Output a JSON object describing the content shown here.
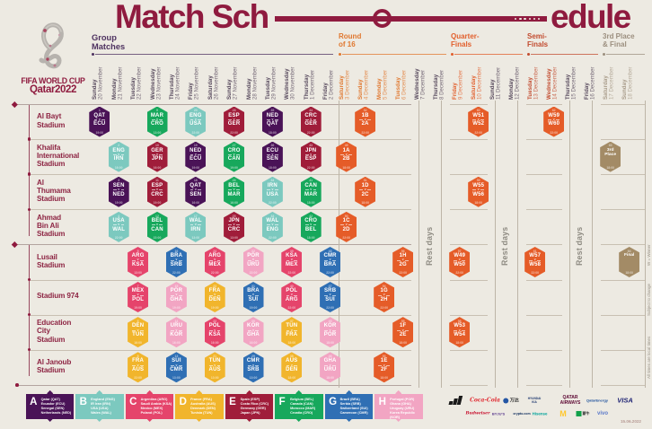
{
  "title": {
    "left": "Match Sch",
    "right": "edule"
  },
  "logo": {
    "fifa": "FIFA WORLD CUP",
    "qatar": "Qatar2022"
  },
  "sections": [
    {
      "id": "group",
      "label": [
        "Group",
        "Matches"
      ],
      "color": "#4E3260"
    },
    {
      "id": "r16",
      "label": [
        "Round",
        "of 16"
      ],
      "color": "#E0772E"
    },
    {
      "id": "qf",
      "label": [
        "Quarter-",
        "Finals"
      ],
      "color": "#E25E2B"
    },
    {
      "id": "sf",
      "label": [
        "Semi-",
        "Finals"
      ],
      "color": "#C24B2F"
    },
    {
      "id": "f3",
      "label": [
        "3rd Place",
        "& Final"
      ],
      "color": "#9C8F7F"
    }
  ],
  "date_colors": {
    "group": "#56485C",
    "r16": "#E0772E",
    "rest": "#56485C",
    "qf": "#E25E2B",
    "sf": "#C24B2F",
    "f3": "#A89B89"
  },
  "dates": [
    {
      "day": "Sunday",
      "date": "20 November",
      "sec": "group"
    },
    {
      "day": "Monday",
      "date": "21 November",
      "sec": "group"
    },
    {
      "day": "Tuesday",
      "date": "22 November",
      "sec": "group"
    },
    {
      "day": "Wednesday",
      "date": "23 November",
      "sec": "group"
    },
    {
      "day": "Thursday",
      "date": "24 November",
      "sec": "group"
    },
    {
      "day": "Friday",
      "date": "25 November",
      "sec": "group"
    },
    {
      "day": "Saturday",
      "date": "26 November",
      "sec": "group"
    },
    {
      "day": "Sunday",
      "date": "27 November",
      "sec": "group"
    },
    {
      "day": "Monday",
      "date": "28 November",
      "sec": "group"
    },
    {
      "day": "Tuesday",
      "date": "29 November",
      "sec": "group"
    },
    {
      "day": "Wednesday",
      "date": "30 November",
      "sec": "group"
    },
    {
      "day": "Thursday",
      "date": "1 December",
      "sec": "group"
    },
    {
      "day": "Friday",
      "date": "2 December",
      "sec": "group"
    },
    {
      "day": "Saturday",
      "date": "3 December",
      "sec": "r16"
    },
    {
      "day": "Sunday",
      "date": "4 December",
      "sec": "r16"
    },
    {
      "day": "Monday",
      "date": "5 December",
      "sec": "r16"
    },
    {
      "day": "Tuesday",
      "date": "6 December",
      "sec": "r16"
    },
    {
      "day": "Wednesday",
      "date": "7 December",
      "sec": "rest"
    },
    {
      "day": "Thursday",
      "date": "8 December",
      "sec": "rest"
    },
    {
      "day": "Friday",
      "date": "9 December",
      "sec": "qf"
    },
    {
      "day": "Saturday",
      "date": "10 December",
      "sec": "qf"
    },
    {
      "day": "Sunday",
      "date": "11 December",
      "sec": "rest"
    },
    {
      "day": "Monday",
      "date": "12 December",
      "sec": "rest"
    },
    {
      "day": "Tuesday",
      "date": "13 December",
      "sec": "sf"
    },
    {
      "day": "Wednesday",
      "date": "14 December",
      "sec": "sf"
    },
    {
      "day": "Thursday",
      "date": "15 December",
      "sec": "rest"
    },
    {
      "day": "Friday",
      "date": "16 December",
      "sec": "rest"
    },
    {
      "day": "Saturday",
      "date": "17 December",
      "sec": "f3"
    },
    {
      "day": "Sunday",
      "date": "18 December",
      "sec": "f3"
    }
  ],
  "stadiums": [
    [
      "Al Bayt",
      "Stadium"
    ],
    [
      "Khalifa",
      "International",
      "Stadium"
    ],
    [
      "Al",
      "Thumama",
      "Stadium"
    ],
    [
      "Ahmad",
      "Bin Ali",
      "Stadium"
    ],
    [
      "Lusail",
      "Stadium"
    ],
    [
      "Stadium 974"
    ],
    [
      "Education",
      "City",
      "Stadium"
    ],
    [
      "Al Janoub",
      "Stadium"
    ]
  ],
  "group_colors": {
    "A": "#4A1357",
    "B": "#7CC9BF",
    "C": "#E5446B",
    "D": "#F1B52C",
    "E": "#A01D3A",
    "F": "#17A85C",
    "G": "#2F6FB4",
    "H": "#F2A5C3",
    "ko": "#E55C28",
    "bronze": "#A38B66"
  },
  "matches": [
    {
      "stadium": 0,
      "col": 0,
      "num": "1",
      "home": "QAT",
      "away": "ECU",
      "fill": "A",
      "time": "19:00"
    },
    {
      "stadium": 0,
      "col": 3,
      "num": "9",
      "home": "MAR",
      "away": "CRO",
      "fill": "F",
      "time": "13:00"
    },
    {
      "stadium": 0,
      "col": 5,
      "num": "20",
      "home": "ENG",
      "away": "USA",
      "fill": "B",
      "time": "22:00"
    },
    {
      "stadium": 0,
      "col": 7,
      "num": "28",
      "home": "ESP",
      "away": "GER",
      "fill": "E",
      "time": "22:00"
    },
    {
      "stadium": 0,
      "col": 9,
      "num": "35",
      "home": "NED",
      "away": "QAT",
      "fill": "A",
      "time": "18:00"
    },
    {
      "stadium": 0,
      "col": 11,
      "num": "44",
      "home": "CRC",
      "away": "GER",
      "fill": "E",
      "time": "22:00"
    },
    {
      "stadium": 0,
      "col": 14,
      "num": "52",
      "home": "1B",
      "away": "2A",
      "fill": "ko",
      "time": "22:00"
    },
    {
      "stadium": 0,
      "col": 20,
      "num": "60",
      "home": "W51",
      "away": "W52",
      "fill": "ko",
      "time": "22:00"
    },
    {
      "stadium": 0,
      "col": 24,
      "num": "62",
      "home": "W59",
      "away": "W60",
      "fill": "ko",
      "time": "22:00"
    },
    {
      "stadium": 1,
      "col": 1,
      "num": "2",
      "home": "ENG",
      "away": "IRN",
      "fill": "B",
      "time": "16:00"
    },
    {
      "stadium": 1,
      "col": 3,
      "num": "10",
      "home": "GER",
      "away": "JPN",
      "fill": "E",
      "time": "16:00"
    },
    {
      "stadium": 1,
      "col": 5,
      "num": "19",
      "home": "NED",
      "away": "ECU",
      "fill": "A",
      "time": "19:00"
    },
    {
      "stadium": 1,
      "col": 7,
      "num": "27",
      "home": "CRO",
      "away": "CAN",
      "fill": "F",
      "time": "19:00"
    },
    {
      "stadium": 1,
      "col": 9,
      "num": "36",
      "home": "ECU",
      "away": "SEN",
      "fill": "A",
      "time": "18:00"
    },
    {
      "stadium": 1,
      "col": 11,
      "num": "43",
      "home": "JPN",
      "away": "ESP",
      "fill": "E",
      "time": "22:00"
    },
    {
      "stadium": 1,
      "col": 13,
      "num": "49",
      "home": "1A",
      "away": "2B",
      "fill": "ko",
      "time": "18:00"
    },
    {
      "stadium": 1,
      "col": 27,
      "num": "63",
      "lines": [
        "3rd",
        "Place"
      ],
      "fill": "bronze",
      "time": "18:00"
    },
    {
      "stadium": 2,
      "col": 1,
      "num": "3",
      "home": "SEN",
      "away": "NED",
      "fill": "A",
      "time": "19:00"
    },
    {
      "stadium": 2,
      "col": 3,
      "num": "11",
      "home": "ESP",
      "away": "CRC",
      "fill": "E",
      "time": "19:00"
    },
    {
      "stadium": 2,
      "col": 5,
      "num": "18",
      "home": "QAT",
      "away": "SEN",
      "fill": "A",
      "time": "16:00"
    },
    {
      "stadium": 2,
      "col": 7,
      "num": "26",
      "home": "BEL",
      "away": "MAR",
      "fill": "F",
      "time": "16:00"
    },
    {
      "stadium": 2,
      "col": 9,
      "num": "34",
      "home": "IRN",
      "away": "USA",
      "fill": "B",
      "time": "22:00"
    },
    {
      "stadium": 2,
      "col": 11,
      "num": "41",
      "home": "CAN",
      "away": "MAR",
      "fill": "F",
      "time": "18:00"
    },
    {
      "stadium": 2,
      "col": 14,
      "num": "51",
      "home": "1D",
      "away": "2C",
      "fill": "ko",
      "time": "18:00"
    },
    {
      "stadium": 2,
      "col": 20,
      "num": "59",
      "home": "W55",
      "away": "W56",
      "fill": "ko",
      "time": "18:00"
    },
    {
      "stadium": 3,
      "col": 1,
      "num": "4",
      "home": "USA",
      "away": "WAL",
      "fill": "B",
      "time": "22:00"
    },
    {
      "stadium": 3,
      "col": 3,
      "num": "12",
      "home": "BEL",
      "away": "CAN",
      "fill": "F",
      "time": "22:00"
    },
    {
      "stadium": 3,
      "col": 5,
      "num": "17",
      "home": "WAL",
      "away": "IRN",
      "fill": "B",
      "time": "13:00"
    },
    {
      "stadium": 3,
      "col": 7,
      "num": "25",
      "home": "JPN",
      "away": "CRC",
      "fill": "E",
      "time": "13:00"
    },
    {
      "stadium": 3,
      "col": 9,
      "num": "33",
      "home": "WAL",
      "away": "ENG",
      "fill": "B",
      "time": "22:00"
    },
    {
      "stadium": 3,
      "col": 11,
      "num": "42",
      "home": "CRO",
      "away": "BEL",
      "fill": "F",
      "time": "18:00"
    },
    {
      "stadium": 3,
      "col": 13,
      "num": "50",
      "home": "1C",
      "away": "2D",
      "fill": "ko",
      "time": "22:00"
    },
    {
      "stadium": 4,
      "col": 2,
      "num": "5",
      "home": "ARG",
      "away": "KSA",
      "fill": "C",
      "time": "13:00"
    },
    {
      "stadium": 4,
      "col": 4,
      "num": "16",
      "home": "BRA",
      "away": "SRB",
      "fill": "G",
      "time": "22:00"
    },
    {
      "stadium": 4,
      "col": 6,
      "num": "24",
      "home": "ARG",
      "away": "MEX",
      "fill": "C",
      "time": "22:00"
    },
    {
      "stadium": 4,
      "col": 8,
      "num": "32",
      "home": "POR",
      "away": "URU",
      "fill": "H",
      "time": "22:00"
    },
    {
      "stadium": 4,
      "col": 10,
      "num": "39",
      "home": "KSA",
      "away": "MEX",
      "fill": "C",
      "time": "22:00"
    },
    {
      "stadium": 4,
      "col": 12,
      "num": "48",
      "home": "CMR",
      "away": "BRA",
      "fill": "G",
      "time": "22:00"
    },
    {
      "stadium": 4,
      "col": 16,
      "num": "56",
      "home": "1H",
      "away": "2G",
      "fill": "ko",
      "time": "22:00"
    },
    {
      "stadium": 4,
      "col": 19,
      "num": "57",
      "home": "W49",
      "away": "W50",
      "fill": "ko",
      "time": "22:00"
    },
    {
      "stadium": 4,
      "col": 23,
      "num": "61",
      "home": "W57",
      "away": "W58",
      "fill": "ko",
      "time": "22:00"
    },
    {
      "stadium": 4,
      "col": 28,
      "num": "64",
      "lines": [
        "Final"
      ],
      "fill": "bronze",
      "time": "18:00"
    },
    {
      "stadium": 5,
      "col": 2,
      "num": "7",
      "home": "MEX",
      "away": "POL",
      "fill": "C",
      "time": "19:00"
    },
    {
      "stadium": 5,
      "col": 4,
      "num": "15",
      "home": "POR",
      "away": "GHA",
      "fill": "H",
      "time": "19:00"
    },
    {
      "stadium": 5,
      "col": 6,
      "num": "23",
      "home": "FRA",
      "away": "DEN",
      "fill": "D",
      "time": "19:00"
    },
    {
      "stadium": 5,
      "col": 8,
      "num": "31",
      "home": "BRA",
      "away": "SUI",
      "fill": "G",
      "time": "19:00"
    },
    {
      "stadium": 5,
      "col": 10,
      "num": "40",
      "home": "POL",
      "away": "ARG",
      "fill": "C",
      "time": "22:00"
    },
    {
      "stadium": 5,
      "col": 12,
      "num": "47",
      "home": "SRB",
      "away": "SUI",
      "fill": "G",
      "time": "22:00"
    },
    {
      "stadium": 5,
      "col": 15,
      "num": "54",
      "home": "1G",
      "away": "2H",
      "fill": "ko",
      "time": "22:00"
    },
    {
      "stadium": 6,
      "col": 2,
      "num": "6",
      "home": "DEN",
      "away": "TUN",
      "fill": "D",
      "time": "16:00"
    },
    {
      "stadium": 6,
      "col": 4,
      "num": "14",
      "home": "URU",
      "away": "KOR",
      "fill": "H",
      "time": "16:00"
    },
    {
      "stadium": 6,
      "col": 6,
      "num": "22",
      "home": "POL",
      "away": "KSA",
      "fill": "C",
      "time": "16:00"
    },
    {
      "stadium": 6,
      "col": 8,
      "num": "30",
      "home": "KOR",
      "away": "GHA",
      "fill": "H",
      "time": "16:00"
    },
    {
      "stadium": 6,
      "col": 10,
      "num": "37",
      "home": "TUN",
      "away": "FRA",
      "fill": "D",
      "time": "18:00"
    },
    {
      "stadium": 6,
      "col": 12,
      "num": "45",
      "home": "KOR",
      "away": "POR",
      "fill": "H",
      "time": "18:00"
    },
    {
      "stadium": 6,
      "col": 16,
      "num": "55",
      "home": "1F",
      "away": "2E",
      "fill": "ko",
      "time": "18:00"
    },
    {
      "stadium": 6,
      "col": 19,
      "num": "58",
      "home": "W53",
      "away": "W54",
      "fill": "ko",
      "time": "18:00"
    },
    {
      "stadium": 7,
      "col": 2,
      "num": "8",
      "home": "FRA",
      "away": "AUS",
      "fill": "D",
      "time": "22:00"
    },
    {
      "stadium": 7,
      "col": 4,
      "num": "13",
      "home": "SUI",
      "away": "CMR",
      "fill": "G",
      "time": "13:00"
    },
    {
      "stadium": 7,
      "col": 6,
      "num": "21",
      "home": "TUN",
      "away": "AUS",
      "fill": "D",
      "time": "13:00"
    },
    {
      "stadium": 7,
      "col": 8,
      "num": "29",
      "home": "CMR",
      "away": "SRB",
      "fill": "G",
      "time": "13:00"
    },
    {
      "stadium": 7,
      "col": 10,
      "num": "38",
      "home": "AUS",
      "away": "DEN",
      "fill": "D",
      "time": "18:00"
    },
    {
      "stadium": 7,
      "col": 12,
      "num": "46",
      "home": "GHA",
      "away": "URU",
      "fill": "H",
      "time": "18:00"
    },
    {
      "stadium": 7,
      "col": 15,
      "num": "53",
      "home": "1E",
      "away": "2F",
      "fill": "ko",
      "time": "18:00"
    }
  ],
  "rest_label": "Rest days",
  "legend": [
    {
      "letter": "A",
      "teams": [
        "Qatar (QAT)",
        "Ecuador (ECU)",
        "Senegal (SEN)",
        "Netherlands (NED)"
      ]
    },
    {
      "letter": "B",
      "teams": [
        "England (ENG)",
        "IR Iran (IRN)",
        "USA (USA)",
        "Wales (WAL)"
      ]
    },
    {
      "letter": "C",
      "teams": [
        "Argentina (ARG)",
        "Saudi Arabia (KSA)",
        "Mexico (MEX)",
        "Poland (POL)"
      ]
    },
    {
      "letter": "D",
      "teams": [
        "France (FRA)",
        "Australia (AUS)",
        "Denmark (DEN)",
        "Tunisia (TUN)"
      ]
    },
    {
      "letter": "E",
      "teams": [
        "Spain (ESP)",
        "Costa Rica (CRC)",
        "Germany (GER)",
        "Japan (JPN)"
      ]
    },
    {
      "letter": "F",
      "teams": [
        "Belgium (BEL)",
        "Canada (CAN)",
        "Morocco (MAR)",
        "Croatia (CRO)"
      ]
    },
    {
      "letter": "G",
      "teams": [
        "Brazil (BRA)",
        "Serbia (SRB)",
        "Switzerland (SUI)",
        "Cameroon (CMR)"
      ]
    },
    {
      "letter": "H",
      "teams": [
        "Portugal (POR)",
        "Ghana (GHA)",
        "Uruguay (URU)",
        "Korea Republic (KOR)"
      ]
    }
  ],
  "notes": [
    "W = Winner",
    "Subject to change",
    "All times are local times"
  ],
  "footer_date": "15.06.2022",
  "sponsors_row1": [
    {
      "name": "adidas",
      "kind": "adidas",
      "color": "#1a1a1a",
      "size": 5
    },
    {
      "name": "Coca-Cola",
      "kind": "script",
      "color": "#E0262E",
      "size": 6
    },
    {
      "name": "万达",
      "kind": "wanda",
      "color": "#333333",
      "size": 5
    },
    {
      "name": "HYUNDAI\nKIA",
      "kind": "stack",
      "color": "#223A70",
      "size": 3.2
    },
    {
      "name": "QATAR\nAIRWAYS",
      "kind": "stack",
      "color": "#5C0632",
      "size": 5
    },
    {
      "name": "QatarEnergy",
      "kind": "plain",
      "color": "#1B4F9C",
      "size": 4
    },
    {
      "name": "VISA",
      "kind": "italic",
      "color": "#1A1F71",
      "size": 7.5
    }
  ],
  "sponsors_row2": [
    {
      "name": "Budweiser",
      "kind": "script",
      "color": "#C8102E",
      "size": 4.6
    },
    {
      "name": "BYJU'S",
      "kind": "plain",
      "color": "#5A3A8E",
      "size": 4
    },
    {
      "name": "crypto.com",
      "kind": "plain",
      "color": "#0B2A5B",
      "size": 3.6
    },
    {
      "name": "Hisense",
      "kind": "plain",
      "color": "#00A39B",
      "size": 4.4
    },
    {
      "name": "M",
      "kind": "plain",
      "color": "#FFC72C",
      "size": 9
    },
    {
      "name": "蒙牛",
      "kind": "mengniu",
      "color": "#11A04A",
      "size": 4
    },
    {
      "name": "vivo",
      "kind": "plain",
      "color": "#5B79C9",
      "size": 6
    }
  ]
}
